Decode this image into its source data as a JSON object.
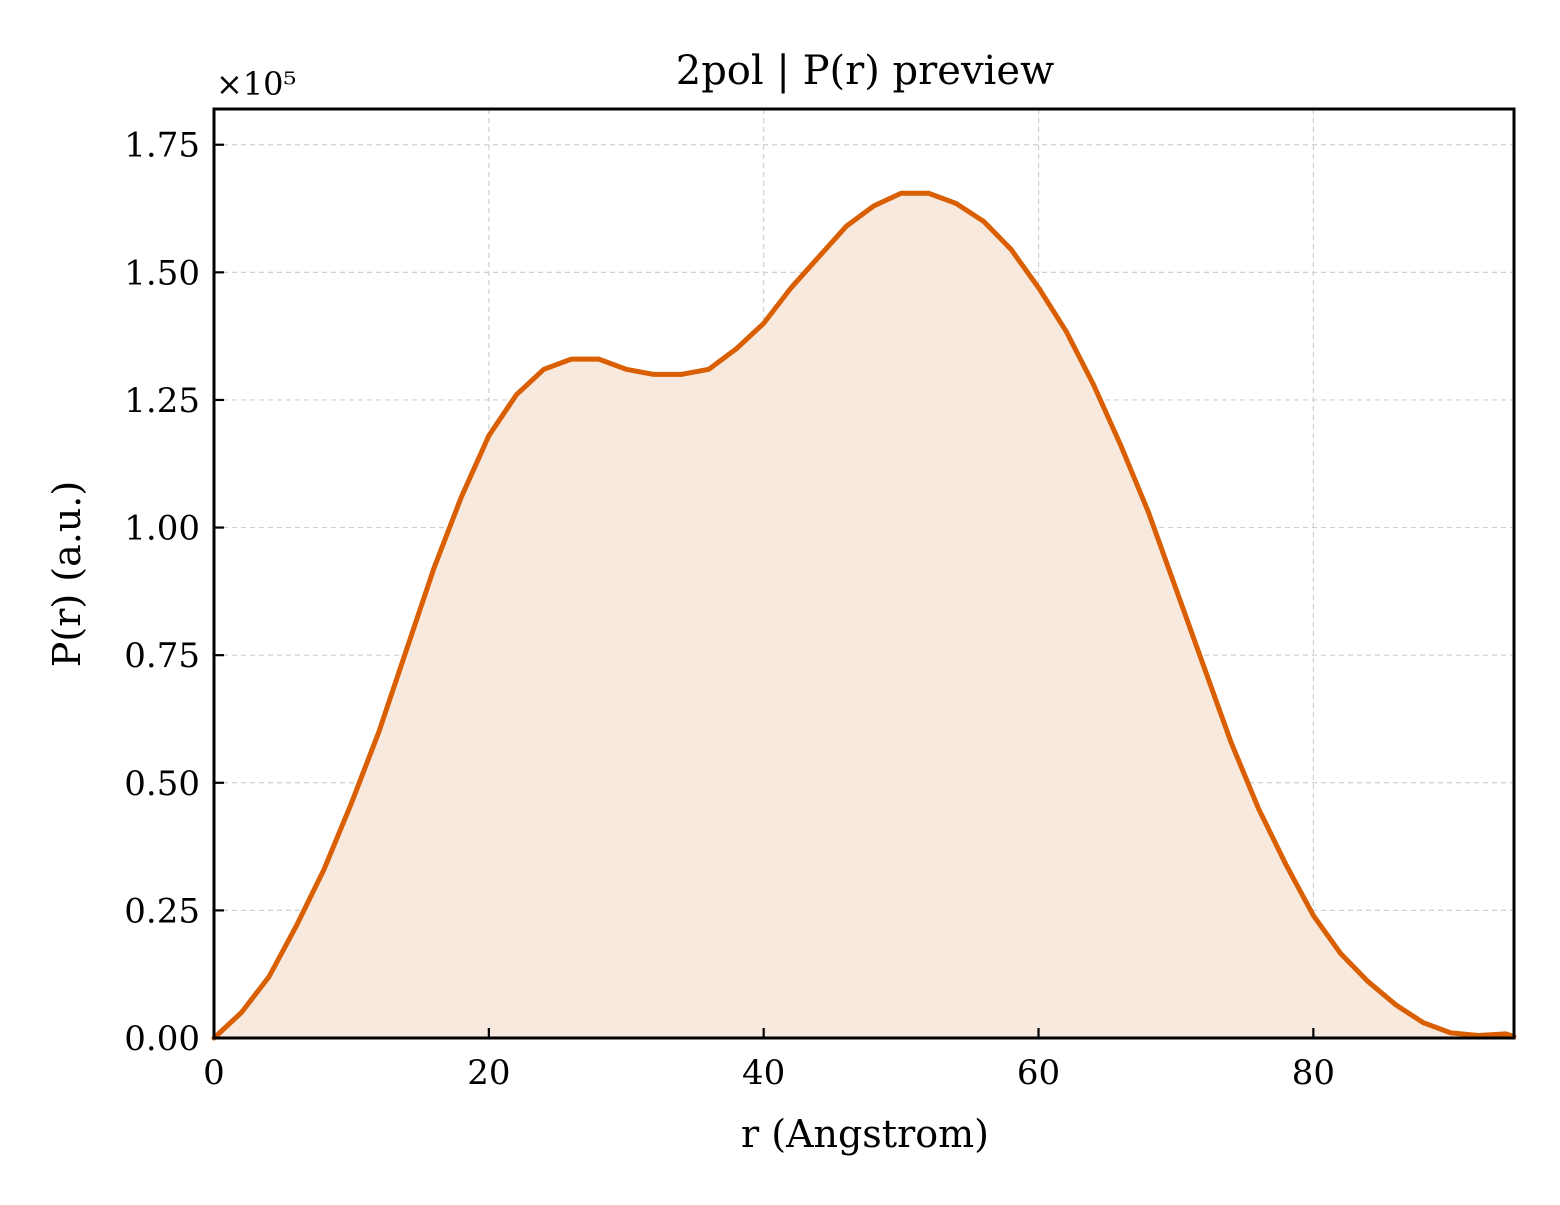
{
  "chart_data": {
    "type": "area",
    "title": "2pol | P(r) preview",
    "xlabel": "r (Angstrom)",
    "ylabel": "P(r) (a.u.)",
    "y_multiplier_label": "×10⁵",
    "xlim": [
      0,
      94.6
    ],
    "ylim": [
      0,
      1.82
    ],
    "xticks": [
      0,
      20,
      40,
      60,
      80
    ],
    "xtick_labels": [
      "0",
      "20",
      "40",
      "60",
      "80"
    ],
    "yticks": [
      0,
      0.25,
      0.5,
      0.75,
      1.0,
      1.25,
      1.5,
      1.75
    ],
    "ytick_labels": [
      "0.00",
      "0.25",
      "0.50",
      "0.75",
      "1.00",
      "1.25",
      "1.50",
      "1.75"
    ],
    "grid": true,
    "line_color": "#d95f02",
    "fill_color": "#f8e9df",
    "series": [
      {
        "x": [
          0,
          2,
          4,
          6,
          8,
          10,
          12,
          14,
          16,
          18,
          20,
          22,
          24,
          26,
          28,
          30,
          32,
          34,
          36,
          38,
          40,
          42,
          44,
          46,
          48,
          50,
          52,
          54,
          56,
          58,
          60,
          62,
          64,
          66,
          68,
          70,
          72,
          74,
          76,
          78,
          80,
          82,
          84,
          86,
          88,
          90,
          92,
          94,
          94.6
        ],
        "y": [
          0.0,
          0.05,
          0.12,
          0.22,
          0.33,
          0.46,
          0.6,
          0.76,
          0.92,
          1.06,
          1.18,
          1.26,
          1.31,
          1.33,
          1.33,
          1.31,
          1.3,
          1.3,
          1.31,
          1.35,
          1.4,
          1.47,
          1.53,
          1.59,
          1.63,
          1.655,
          1.655,
          1.635,
          1.6,
          1.545,
          1.47,
          1.385,
          1.28,
          1.16,
          1.03,
          0.88,
          0.73,
          0.58,
          0.45,
          0.34,
          0.24,
          0.165,
          0.11,
          0.065,
          0.03,
          0.01,
          0.005,
          0.008,
          0.003
        ]
      }
    ]
  }
}
